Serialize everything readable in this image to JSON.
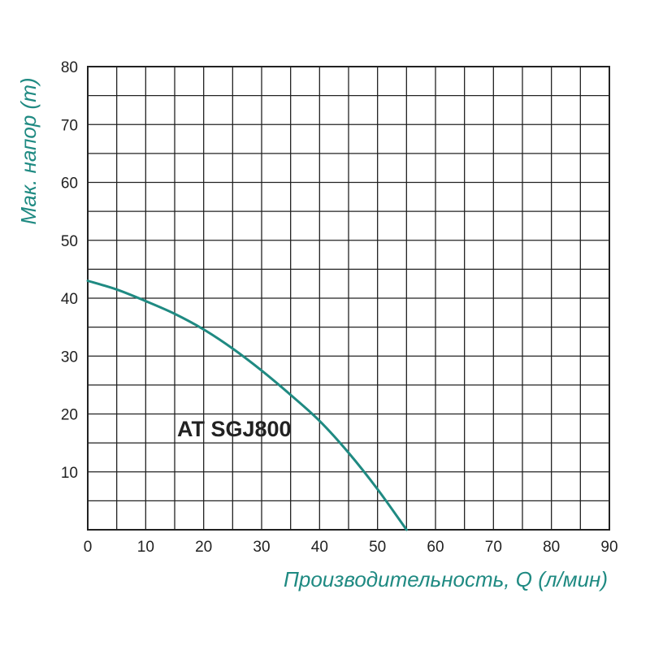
{
  "chart_data": {
    "type": "line",
    "xlabel": "Производительность, Q (л/мин)",
    "ylabel": "Мак. напор (m)",
    "xlim": [
      0,
      90
    ],
    "ylim": [
      0,
      80
    ],
    "x_ticks": [
      "0",
      "10",
      "20",
      "30",
      "40",
      "50",
      "60",
      "70",
      "80",
      "90"
    ],
    "y_ticks": [
      "10",
      "20",
      "30",
      "40",
      "50",
      "60",
      "70",
      "80"
    ],
    "grid": true,
    "x_minor_step": 5,
    "y_minor_step": 5,
    "series": [
      {
        "name": "AT SGJ800",
        "color": "#1f8a82",
        "x": [
          0,
          5,
          10,
          15,
          20,
          25,
          30,
          35,
          40,
          45,
          50,
          55
        ],
        "y": [
          43,
          41.5,
          39.5,
          37.3,
          34.6,
          31.3,
          27.5,
          23.3,
          18.8,
          13.3,
          7,
          0
        ]
      }
    ],
    "label_color": "#1f8a82"
  }
}
